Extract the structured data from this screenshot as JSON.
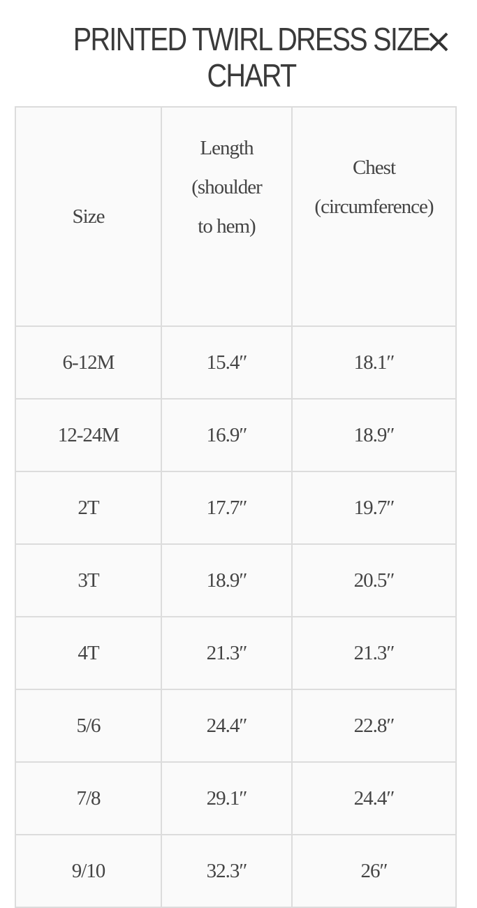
{
  "title": "PRINTED TWIRL DRESS SIZE CHART",
  "close_icon": "close-x-icon",
  "table": {
    "headers": [
      "Size",
      "Length (shoulder to hem)",
      "Chest (circumference)"
    ],
    "header_lines": {
      "length": [
        "Length",
        "(shoulder",
        "to hem)"
      ],
      "chest": [
        "Chest",
        "(circumference)"
      ]
    },
    "rows": [
      [
        "6-12M",
        "15.4″",
        "18.1″"
      ],
      [
        "12-24M",
        "16.9″",
        "18.9″"
      ],
      [
        "2T",
        "17.7″",
        "19.7″"
      ],
      [
        "3T",
        "18.9″",
        "20.5″"
      ],
      [
        "4T",
        "21.3″",
        "21.3″"
      ],
      [
        "5/6",
        "24.4″",
        "22.8″"
      ],
      [
        "7/8",
        "29.1″",
        "24.4″"
      ],
      [
        "9/10",
        "32.3″",
        "26″"
      ]
    ]
  },
  "colors": {
    "border": "#dcdcdc",
    "cell_bg": "#fafafa",
    "text": "#444444"
  }
}
